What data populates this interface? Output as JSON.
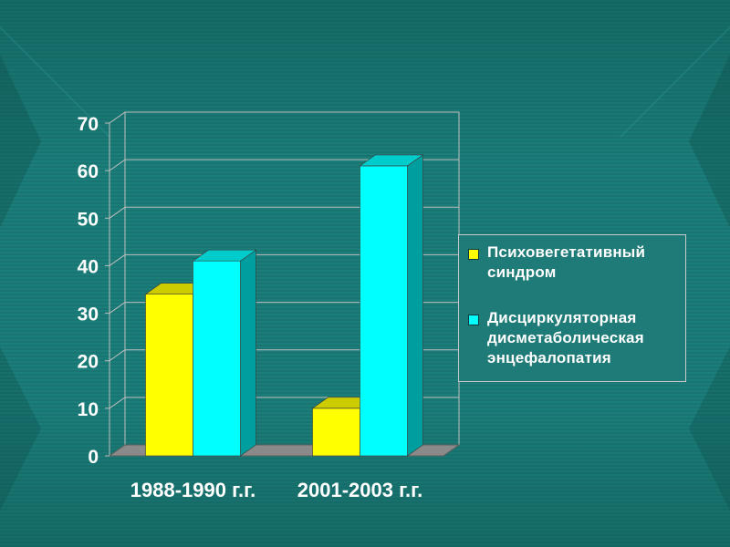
{
  "chart_data": {
    "type": "bar",
    "categories": [
      "1988-1990 г.г.",
      "2001-2003 г.г."
    ],
    "series": [
      {
        "name": "Психовегетативный синдром",
        "values": [
          34,
          10
        ],
        "color": "#ffff00"
      },
      {
        "name": "Дисциркуляторная дисметаболическая энцефалопатия",
        "values": [
          41,
          61
        ],
        "color": "#00ffff"
      }
    ],
    "yticks": [
      0,
      10,
      20,
      30,
      40,
      50,
      60,
      70
    ],
    "ylim": [
      0,
      70
    ],
    "grid": true,
    "legend_position": "right",
    "style": "3d-column"
  },
  "legend": {
    "items": [
      {
        "label": "Психовегетативный синдром",
        "color": "#ffff00"
      },
      {
        "label": "Дисциркуляторная дисметаболическая энцефалопатия",
        "color": "#00ffff"
      }
    ]
  },
  "colors": {
    "background": "#1a7a76",
    "background_dark": "#14625f",
    "floor": "#8a8a8a",
    "grid": "#bfbfbf",
    "text": "#ffffff"
  }
}
